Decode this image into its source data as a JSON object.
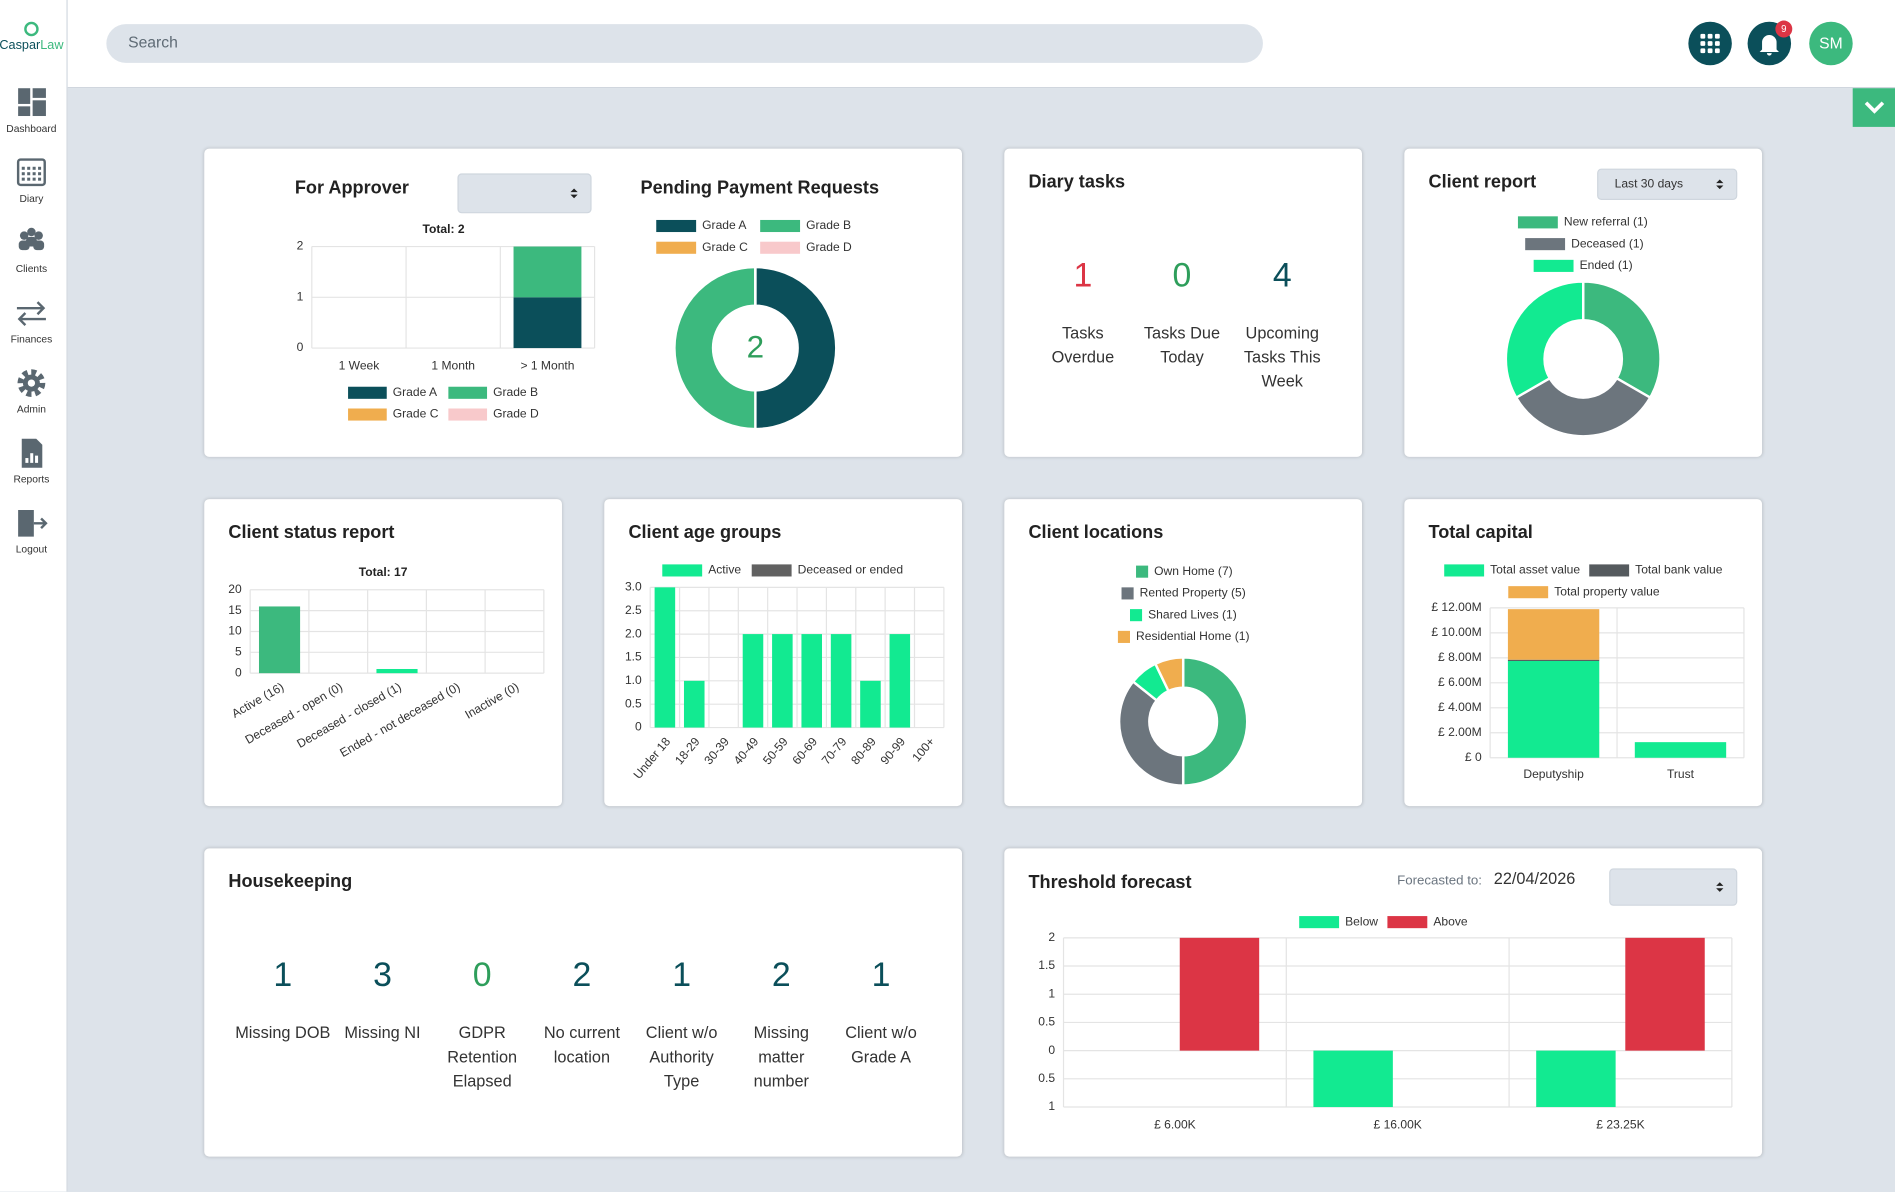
{
  "sidebar": {
    "logo": {
      "part_1": "Caspar",
      "part_2": "Law"
    },
    "nav": [
      "Dashboard",
      "Diary",
      "Clients",
      "Finances",
      "Admin",
      "Reports",
      "Logout"
    ]
  },
  "header": {
    "search_placeholder": "Search",
    "notification_count": 9,
    "user_initials": "SM"
  },
  "chart_data": [
    {
      "type": "bar",
      "stacked": true,
      "title": "For Approver",
      "total_label": "Total: 2",
      "categories": [
        "1 Week",
        "1 Month",
        "> 1 Month"
      ],
      "series": [
        {
          "name": "Grade A",
          "color": "#0b4f5a",
          "values": [
            0,
            0,
            1
          ]
        },
        {
          "name": "Grade B",
          "color": "#3cb97e",
          "values": [
            0,
            0,
            1
          ]
        },
        {
          "name": "Grade C",
          "color": "#f0ad4e",
          "values": [
            0,
            0,
            0
          ]
        },
        {
          "name": "Grade D",
          "color": "#f8c9cb",
          "values": [
            0,
            0,
            0
          ]
        }
      ],
      "ylim": [
        0,
        2
      ],
      "yticks": [
        0,
        1,
        2
      ],
      "grid": true,
      "legend": "bottom"
    },
    {
      "type": "doughnut",
      "title": "Pending Payment Requests",
      "categories": [
        "Grade A",
        "Grade B",
        "Grade C",
        "Grade D"
      ],
      "values": [
        1,
        1,
        0,
        0
      ],
      "colors": [
        "#0b4f5a",
        "#3cb97e",
        "#f0ad4e",
        "#f8c9cb"
      ],
      "center_value": 2,
      "legend": "top"
    },
    {
      "type": "doughnut",
      "title": "Client report",
      "filter": "Last 30 days",
      "categories": [
        "New referral (1)",
        "Deceased (1)",
        "Ended (1)"
      ],
      "values": [
        1,
        1,
        1
      ],
      "colors": [
        "#3cb97e",
        "#6c757d",
        "#12ea91"
      ],
      "legend": "top"
    },
    {
      "type": "bar",
      "title": "Client status report",
      "total_label": "Total: 17",
      "categories": [
        "Active (16)",
        "Deceased - open (0)",
        "Deceased - closed (1)",
        "Ended - not deceased (0)",
        "Inactive (0)"
      ],
      "values": [
        16,
        0,
        1,
        0,
        0
      ],
      "colors": [
        "#3cb97e",
        "#6c757d",
        "#12ea91",
        "#0b4f5a",
        "#f0ad4e"
      ],
      "ylim": [
        0,
        20
      ],
      "yticks": [
        0,
        5,
        10,
        15,
        20
      ],
      "grid": true
    },
    {
      "type": "bar",
      "stacked": true,
      "title": "Client age groups",
      "categories": [
        "Under 18",
        "18-29",
        "30-39",
        "40-49",
        "50-59",
        "60-69",
        "70-79",
        "80-89",
        "90-99",
        "100+"
      ],
      "series": [
        {
          "name": "Active",
          "color": "#12ea91",
          "values": [
            3,
            1,
            0,
            2,
            2,
            2,
            2,
            1,
            2,
            0
          ]
        },
        {
          "name": "Deceased or ended",
          "color": "#616161",
          "values": [
            0,
            0,
            0,
            0,
            0,
            0,
            0,
            0,
            0,
            0
          ]
        }
      ],
      "ylim": [
        0,
        3
      ],
      "yticks": [
        0,
        0.5,
        {
          "value": 1,
          "label": "1.0"
        },
        1.5,
        {
          "value": 2,
          "label": "2.0"
        },
        2.5,
        {
          "value": 3,
          "label": "3.0"
        }
      ],
      "grid": true,
      "legend": "top"
    },
    {
      "type": "doughnut",
      "title": "Client locations",
      "categories": [
        "Own Home (7)",
        "Rented Property (5)",
        "Shared Lives (1)",
        "Residential Home (1)"
      ],
      "values": [
        7,
        5,
        1,
        1
      ],
      "colors": [
        "#3cb97e",
        "#6c757d",
        "#12ea91",
        "#f0ad4e"
      ],
      "legend": "top"
    },
    {
      "type": "bar",
      "stacked": true,
      "title": "Total capital",
      "categories": [
        "Deputyship",
        "Trust"
      ],
      "series": [
        {
          "name": "Total asset value",
          "color": "#12ea91",
          "values": [
            7750000,
            1250000
          ]
        },
        {
          "name": "Total bank value",
          "color": "#555a5e",
          "values": [
            100000,
            0
          ]
        },
        {
          "name": "Total property value",
          "color": "#f0ad4e",
          "values": [
            4050000,
            0
          ]
        }
      ],
      "ylim": [
        0,
        12000000
      ],
      "yticks": [
        {
          "value": 0,
          "label": "£ 0"
        },
        {
          "value": 2000000,
          "label": "£ 2.00M"
        },
        {
          "value": 4000000,
          "label": "£ 4.00M"
        },
        {
          "value": 6000000,
          "label": "£ 6.00M"
        },
        {
          "value": 8000000,
          "label": "£ 8.00M"
        },
        {
          "value": 10000000,
          "label": "£ 10.00M"
        },
        {
          "value": 12000000,
          "label": "£ 12.00M"
        }
      ],
      "grid": true,
      "legend": "top"
    },
    {
      "type": "bar",
      "stacked": false,
      "title": "Threshold forecast",
      "forecast_label": "Forecasted to:",
      "forecast_date": "22/04/2026",
      "categories": [
        "£ 6.00K",
        "£ 16.00K",
        "£ 23.25K"
      ],
      "series": [
        {
          "name": "Below",
          "color": "#12ea91",
          "values": [
            0,
            -1,
            -1
          ]
        },
        {
          "name": "Above",
          "color": "#dc3545",
          "values": [
            2,
            0,
            2
          ]
        }
      ],
      "ylim": [
        -1,
        2
      ],
      "yticks": [
        2,
        1.5,
        1,
        0.5,
        0,
        {
          "value": -0.5,
          "label": "0.5"
        },
        {
          "value": -1,
          "label": "1"
        }
      ],
      "grid": true,
      "legend": "top"
    }
  ],
  "diary_tasks": {
    "title": "Diary tasks",
    "items": [
      {
        "value": 1,
        "label": "Tasks Overdue",
        "color": "#dc3545"
      },
      {
        "value": 0,
        "label": "Tasks Due Today",
        "color": "#2e9e5b"
      },
      {
        "value": 4,
        "label": "Upcoming Tasks This Week",
        "color": "#0b4f5a"
      }
    ]
  },
  "housekeeping": {
    "title": "Housekeeping",
    "items": [
      {
        "value": 1,
        "label": "Missing DOB",
        "color": "#0b4f5a"
      },
      {
        "value": 3,
        "label": "Missing NI",
        "color": "#0b4f5a"
      },
      {
        "value": 0,
        "label": "GDPR Retention Elapsed",
        "color": "#2e9e5b"
      },
      {
        "value": 2,
        "label": "No current location",
        "color": "#0b4f5a"
      },
      {
        "value": 1,
        "label": "Client w/o Authority Type",
        "color": "#0b4f5a"
      },
      {
        "value": 2,
        "label": "Missing matter number",
        "color": "#0b4f5a"
      },
      {
        "value": 1,
        "label": "Client w/o Grade A",
        "color": "#0b4f5a"
      }
    ]
  }
}
